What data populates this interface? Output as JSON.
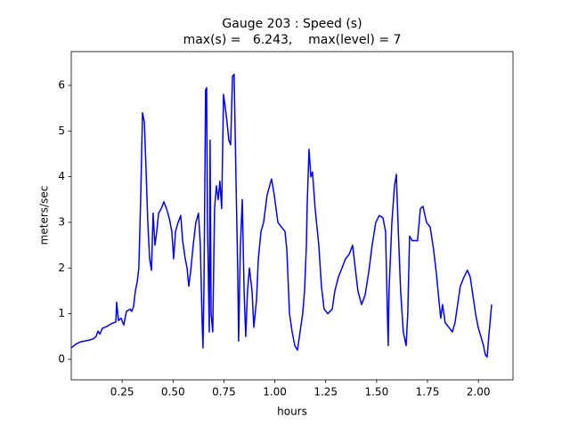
{
  "chart_data": {
    "type": "line",
    "title": "Gauge 203 : Speed (s)",
    "subtitle": "max(s) =   6.243,    max(level) = 7",
    "x_label": "hours",
    "y_label": "meters/sec",
    "color": "#0000ff",
    "x": [
      0,
      0.022,
      0.044,
      0.066,
      0.087,
      0.109,
      0.122,
      0.131,
      0.14,
      0.153,
      0.175,
      0.197,
      0.219,
      0.223,
      0.232,
      0.245,
      0.258,
      0.271,
      0.289,
      0.297,
      0.306,
      0.315,
      0.324,
      0.332,
      0.341,
      0.35,
      0.359,
      0.367,
      0.376,
      0.385,
      0.394,
      0.402,
      0.411,
      0.42,
      0.429,
      0.442,
      0.455,
      0.468,
      0.481,
      0.494,
      0.503,
      0.512,
      0.525,
      0.538,
      0.547,
      0.56,
      0.569,
      0.577,
      0.586,
      0.599,
      0.612,
      0.625,
      0.634,
      0.643,
      0.647,
      0.652,
      0.66,
      0.665,
      0.669,
      0.678,
      0.682,
      0.687,
      0.695,
      0.704,
      0.713,
      0.722,
      0.73,
      0.739,
      0.748,
      0.757,
      0.765,
      0.774,
      0.783,
      0.792,
      0.8,
      0.809,
      0.818,
      0.822,
      0.831,
      0.84,
      0.849,
      0.857,
      0.866,
      0.875,
      0.888,
      0.897,
      0.91,
      0.919,
      0.932,
      0.945,
      0.962,
      0.984,
      0.997,
      1.015,
      1.032,
      1.05,
      1.059,
      1.072,
      1.085,
      1.098,
      1.111,
      1.124,
      1.137,
      1.146,
      1.155,
      1.159,
      1.168,
      1.177,
      1.185,
      1.198,
      1.216,
      1.229,
      1.242,
      1.26,
      1.282,
      1.295,
      1.312,
      1.33,
      1.347,
      1.365,
      1.382,
      1.395,
      1.408,
      1.426,
      1.443,
      1.461,
      1.478,
      1.496,
      1.513,
      1.531,
      1.544,
      1.553,
      1.557,
      1.561,
      1.575,
      1.588,
      1.597,
      1.605,
      1.618,
      1.631,
      1.645,
      1.653,
      1.662,
      1.675,
      1.688,
      1.701,
      1.715,
      1.728,
      1.745,
      1.763,
      1.78,
      1.793,
      1.806,
      1.815,
      1.824,
      1.837,
      1.855,
      1.872,
      1.885,
      1.898,
      1.911,
      1.929,
      1.946,
      1.96,
      1.973,
      1.986,
      1.999,
      2.012,
      2.025,
      2.034,
      2.043,
      2.051,
      2.065
    ],
    "values": [
      0.25,
      0.33,
      0.38,
      0.4,
      0.42,
      0.45,
      0.5,
      0.62,
      0.55,
      0.68,
      0.72,
      0.78,
      0.82,
      1.25,
      0.85,
      0.9,
      0.75,
      1.05,
      1.1,
      1.05,
      1.15,
      1.5,
      1.7,
      2.0,
      3.5,
      5.4,
      5.2,
      4.2,
      3.0,
      2.2,
      1.95,
      3.2,
      2.5,
      2.8,
      3.2,
      3.3,
      3.45,
      3.3,
      3.1,
      2.8,
      2.2,
      2.8,
      3.0,
      3.15,
      2.6,
      2.2,
      2.0,
      1.6,
      1.9,
      2.5,
      3.0,
      3.2,
      2.5,
      0.8,
      0.25,
      1.6,
      5.9,
      5.95,
      3.0,
      0.6,
      4.8,
      1.0,
      0.6,
      3.3,
      3.8,
      3.5,
      3.9,
      3.3,
      5.8,
      5.5,
      5.2,
      4.8,
      4.7,
      6.2,
      6.243,
      4.0,
      1.9,
      0.4,
      2.5,
      3.5,
      1.5,
      0.5,
      1.5,
      2.0,
      1.5,
      0.7,
      1.3,
      2.2,
      2.8,
      3.0,
      3.6,
      3.95,
      3.6,
      3.0,
      2.9,
      2.8,
      2.4,
      1.0,
      0.6,
      0.3,
      0.2,
      0.6,
      1.0,
      1.5,
      2.5,
      3.4,
      4.6,
      4.0,
      4.1,
      3.3,
      2.5,
      1.6,
      1.1,
      1.0,
      1.1,
      1.5,
      1.8,
      2.0,
      2.2,
      2.3,
      2.5,
      2.0,
      1.5,
      1.2,
      1.4,
      1.9,
      2.5,
      3.0,
      3.15,
      3.1,
      2.8,
      1.0,
      0.3,
      1.5,
      3.0,
      3.8,
      4.05,
      3.0,
      1.5,
      0.6,
      0.3,
      1.0,
      2.7,
      2.6,
      2.6,
      2.6,
      3.3,
      3.35,
      3.0,
      2.9,
      2.4,
      1.9,
      1.3,
      0.9,
      1.2,
      0.8,
      0.7,
      0.6,
      0.8,
      1.2,
      1.6,
      1.8,
      1.95,
      1.8,
      1.4,
      1.0,
      0.7,
      0.5,
      0.3,
      0.1,
      0.05,
      0.5,
      1.2
    ],
    "xlim": [
      0,
      2.17
    ],
    "ylim": [
      -0.45,
      6.74
    ],
    "xticks": [
      0.25,
      {
        "value": 0.5,
        "label": "0.50"
      },
      0.75,
      {
        "value": 1,
        "label": "1.00"
      },
      1.25,
      {
        "value": 1.5,
        "label": "1.50"
      },
      1.75,
      {
        "value": 2,
        "label": "2.00"
      }
    ],
    "yticks": [
      0,
      1,
      2,
      3,
      4,
      5,
      6
    ]
  }
}
